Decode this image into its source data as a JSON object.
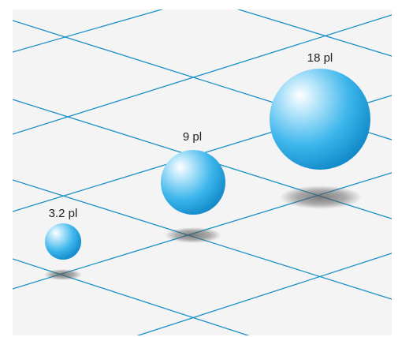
{
  "colors": {
    "panel_background": "#f4f4f4",
    "grid_line": "#1a8fc4",
    "sphere_highlight": "#ffffff",
    "sphere_mid": "#3db6ec",
    "sphere_dark": "#0f86c6",
    "shadow": "#555555"
  },
  "droplets": [
    {
      "label": "3.2 pl"
    },
    {
      "label": "9 pl"
    },
    {
      "label": "18 pl"
    }
  ]
}
